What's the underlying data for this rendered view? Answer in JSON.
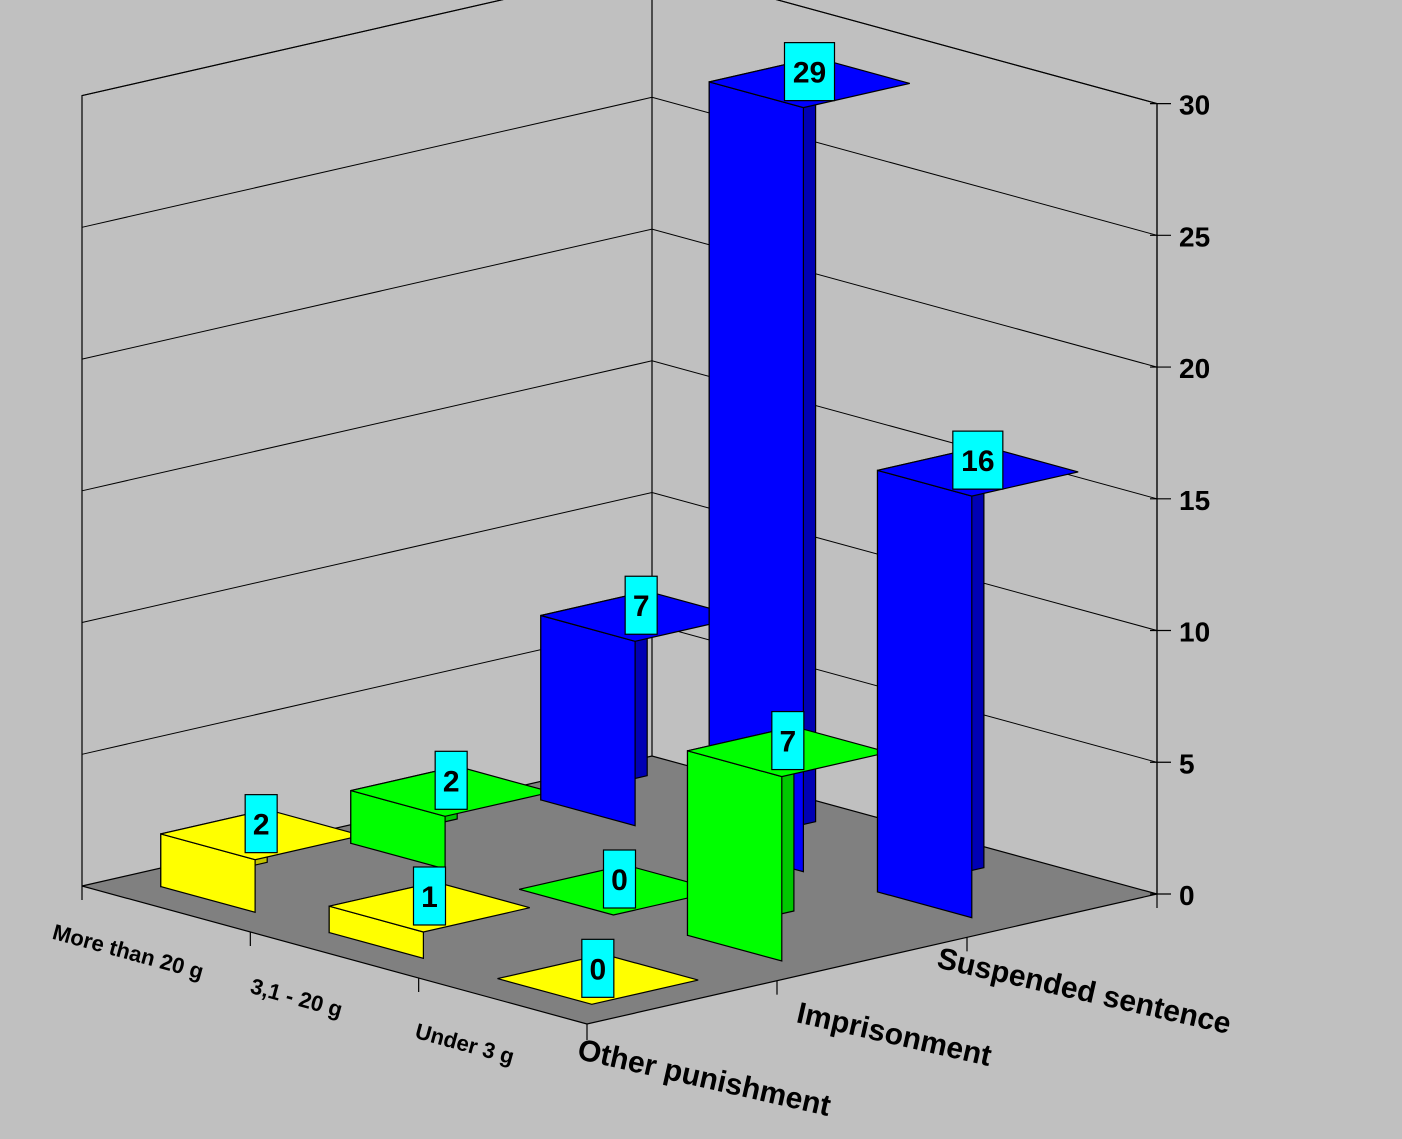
{
  "chart_data": {
    "type": "bar",
    "subtype": "3d-bar",
    "title": "",
    "x_categories": [
      "Under 3 g",
      "3,1 - 20 g",
      "More than 20 g"
    ],
    "depth_categories": [
      "Other punishment",
      "Imprisonment",
      "Suspended sentence"
    ],
    "series": [
      {
        "name": "Other punishment",
        "values": [
          0,
          1,
          2
        ]
      },
      {
        "name": "Imprisonment",
        "values": [
          7,
          0,
          2
        ]
      },
      {
        "name": "Suspended sentence",
        "values": [
          16,
          29,
          7
        ]
      }
    ],
    "zlim": [
      0,
      30
    ],
    "z_ticks": [
      "0",
      "5",
      "10",
      "15",
      "20",
      "25",
      "30"
    ],
    "gridlines": true,
    "legend": "none",
    "colors": {
      "background": "#c0c0c0",
      "floor": "#808080",
      "label_box": "#00ffff",
      "yellow": [
        "#ffff00",
        "#c4c400"
      ],
      "green": [
        "#00ff00",
        "#00c800"
      ],
      "blue": [
        "#0000ff",
        "#0000b4"
      ]
    }
  }
}
